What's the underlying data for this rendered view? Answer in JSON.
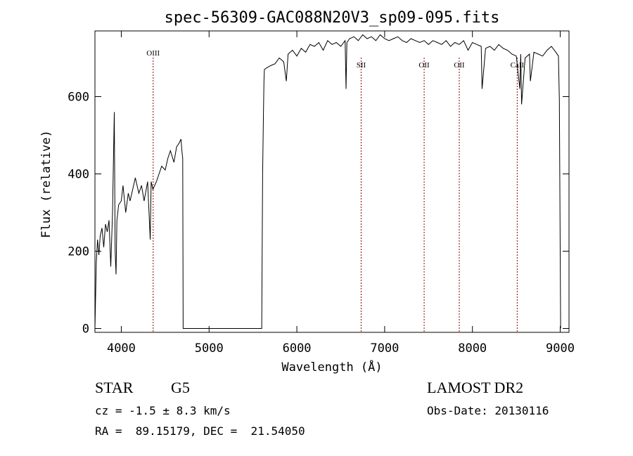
{
  "chart_data": {
    "type": "line",
    "title": "spec-56309-GAC088N20V3_sp09-095.fits",
    "xlabel": "Wavelength (Å)",
    "ylabel": "Flux (relative)",
    "xlim": [
      3700,
      9100
    ],
    "ylim": [
      -10,
      770
    ],
    "x_ticks": [
      4000,
      5000,
      6000,
      7000,
      8000,
      9000
    ],
    "y_ticks": [
      0,
      200,
      400,
      600
    ],
    "grid": false,
    "series": [
      {
        "x": [
          3700,
          3715,
          3730,
          3745,
          3760,
          3780,
          3800,
          3820,
          3840,
          3860,
          3880,
          3900,
          3920,
          3930,
          3940,
          3950,
          3970,
          4000,
          4020,
          4050,
          4080,
          4100,
          4130,
          4160,
          4200,
          4230,
          4260,
          4300,
          4330,
          4340,
          4360,
          4400,
          4430,
          4460,
          4500,
          4530,
          4560,
          4600,
          4630,
          4660,
          4680,
          4690,
          4700,
          4705,
          5600,
          5610,
          5620,
          5625,
          5630,
          5660,
          5700,
          5750,
          5800,
          5850,
          5880,
          5900,
          5950,
          6000,
          6050,
          6100,
          6150,
          6200,
          6250,
          6300,
          6350,
          6400,
          6450,
          6500,
          6550,
          6560,
          6570,
          6600,
          6650,
          6700,
          6750,
          6800,
          6850,
          6900,
          6950,
          7000,
          7050,
          7100,
          7150,
          7200,
          7250,
          7300,
          7350,
          7400,
          7450,
          7500,
          7550,
          7600,
          7650,
          7700,
          7750,
          7800,
          7850,
          7900,
          7950,
          8000,
          8050,
          8100,
          8110,
          8150,
          8200,
          8250,
          8300,
          8350,
          8400,
          8450,
          8500,
          8540,
          8550,
          8560,
          8600,
          8650,
          8660,
          8700,
          8750,
          8800,
          8850,
          8900,
          8950,
          8980,
          8990,
          9000,
          9005
        ],
        "y": [
          0,
          170,
          230,
          190,
          240,
          260,
          210,
          270,
          250,
          280,
          160,
          300,
          560,
          200,
          140,
          280,
          320,
          330,
          370,
          300,
          350,
          330,
          360,
          390,
          350,
          370,
          330,
          380,
          230,
          380,
          360,
          380,
          400,
          420,
          410,
          440,
          460,
          430,
          470,
          480,
          490,
          460,
          440,
          0,
          0,
          400,
          560,
          640,
          670,
          675,
          680,
          685,
          700,
          690,
          640,
          710,
          720,
          705,
          725,
          715,
          735,
          730,
          740,
          720,
          745,
          735,
          740,
          730,
          745,
          620,
          740,
          750,
          755,
          745,
          760,
          750,
          755,
          745,
          760,
          750,
          745,
          750,
          755,
          745,
          740,
          750,
          745,
          740,
          745,
          735,
          745,
          740,
          735,
          745,
          730,
          740,
          735,
          745,
          720,
          740,
          735,
          730,
          620,
          725,
          730,
          720,
          735,
          725,
          720,
          710,
          705,
          620,
          710,
          580,
          700,
          710,
          640,
          715,
          710,
          705,
          720,
          730,
          715,
          705,
          590,
          200,
          0
        ]
      }
    ],
    "line_markers": [
      {
        "label": "OIII",
        "x": 4363
      },
      {
        "label": "SII",
        "x": 6732
      },
      {
        "label": "OII",
        "x": 7450
      },
      {
        "label": "OII",
        "x": 7850
      },
      {
        "label": "CaII",
        "x": 8510
      }
    ]
  },
  "info": {
    "object_type": "STAR",
    "subclass": "G5",
    "survey": "LAMOST DR2",
    "redshift": "cz = -1.5 ± 8.3 km/s",
    "obs_date": "Obs-Date: 20130116",
    "coords": "RA =  89.15179, DEC =  21.54050"
  },
  "colors": {
    "line": "#000000",
    "marker": "#8b0000"
  }
}
